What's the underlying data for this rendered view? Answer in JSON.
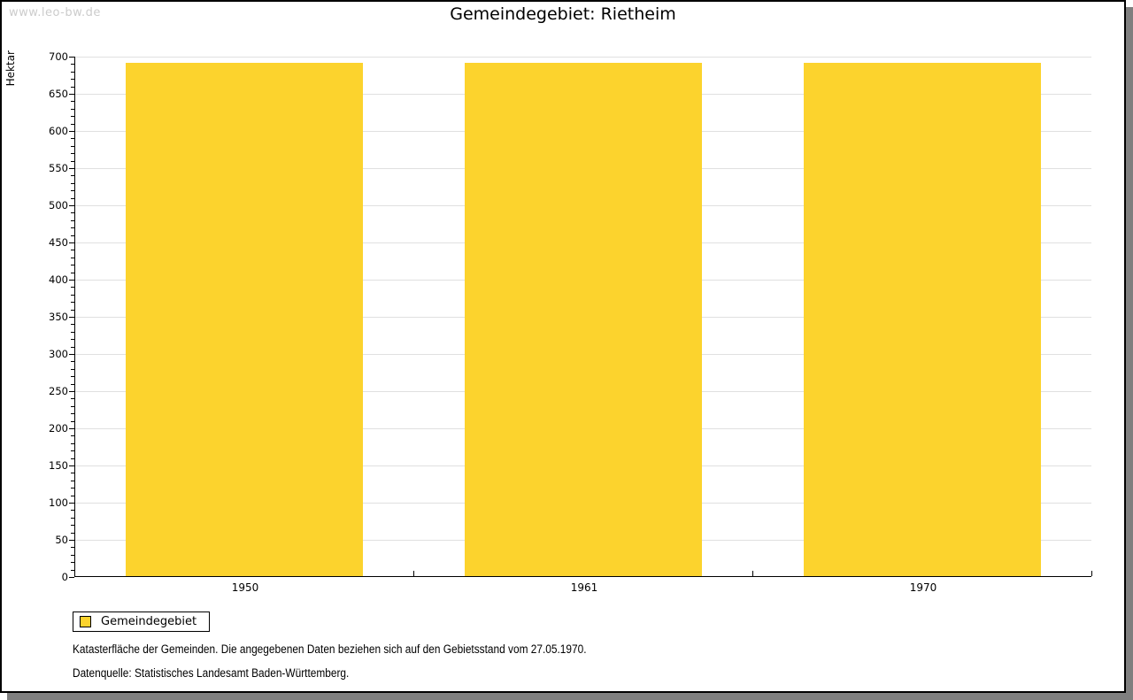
{
  "watermark": "www.leo-bw.de",
  "title": "Gemeindegebiet: Rietheim",
  "y_axis_label": "Hektar",
  "legend": {
    "label": "Gemeindegebiet"
  },
  "footnotes": {
    "line1": "Katasterfläche der Gemeinden. Die angegebenen Daten beziehen sich auf den Gebietsstand vom 27.05.1970.",
    "line2": "Datenquelle: Statistisches Landesamt Baden-Württemberg."
  },
  "colors": {
    "bar": "#FCD32D",
    "grid": "#E0E0E0",
    "axis": "#000000",
    "shadow": "#7F7F7F",
    "watermark_text": "#CCCCCC"
  },
  "chart_data": {
    "type": "bar",
    "title": "Gemeindegebiet: Rietheim",
    "categories": [
      "1950",
      "1961",
      "1970"
    ],
    "series": [
      {
        "name": "Gemeindegebiet",
        "values": [
          691,
          691,
          691
        ]
      }
    ],
    "xlabel": "",
    "ylabel": "Hektar",
    "ylim": [
      0,
      700
    ],
    "y_major_tick": 50,
    "y_minor_tick": 10,
    "grid": true,
    "bar_width_fraction": 0.7,
    "legend_position": "bottom-left",
    "bar_color": "#FCD32D"
  }
}
